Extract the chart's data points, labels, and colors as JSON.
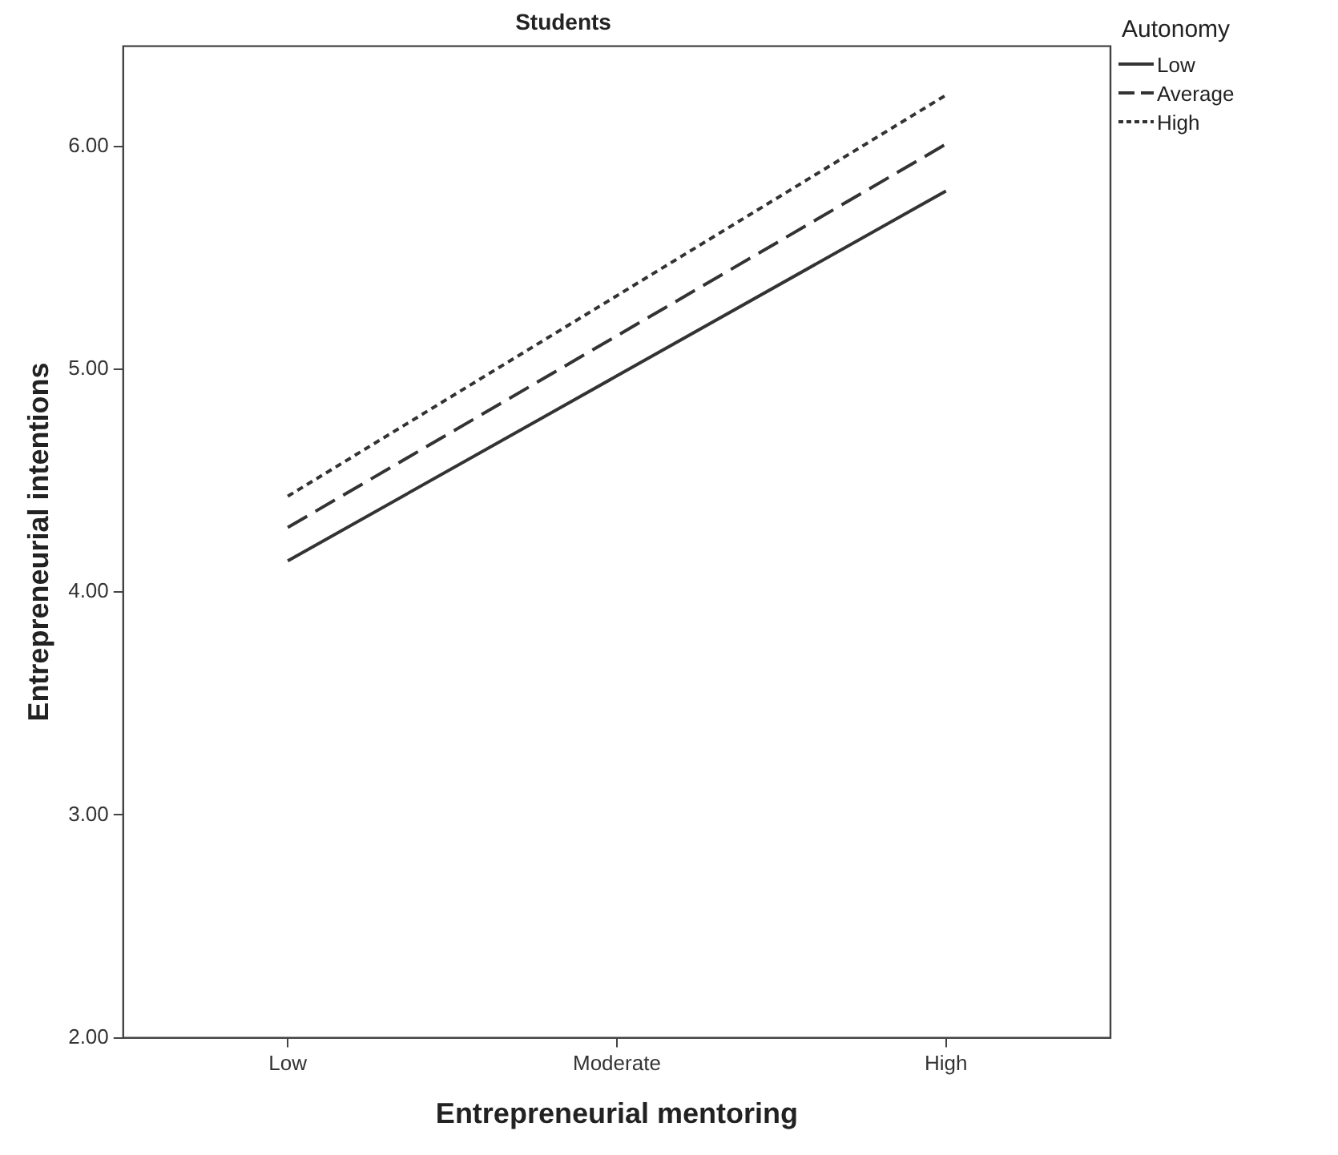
{
  "chart_data": {
    "type": "line",
    "title": "Students",
    "xlabel": "Entrepreneurial mentoring",
    "ylabel": "Entrepreneurial intentions",
    "legend_title": "Autonomy",
    "legend": "top right",
    "grid": false,
    "marker": "none",
    "categories": [
      "Low",
      "Moderate",
      "High"
    ],
    "ylim": [
      2,
      6.45
    ],
    "yticks": [
      {
        "value": 2,
        "label": "2.00"
      },
      {
        "value": 3,
        "label": "3.00"
      },
      {
        "value": 4,
        "label": "4.00"
      },
      {
        "value": 5,
        "label": "5.00"
      },
      {
        "value": 6,
        "label": "6.00"
      }
    ],
    "series": [
      {
        "name": "Low",
        "color": "#333333",
        "line_style": "solid",
        "values": [
          4.14,
          4.97,
          5.8
        ]
      },
      {
        "name": "Average",
        "color": "#333333",
        "line_style": "dashed",
        "values": [
          4.29,
          5.15,
          6.01
        ]
      },
      {
        "name": "High",
        "color": "#333333",
        "line_style": "dotted",
        "values": [
          4.43,
          5.33,
          6.23
        ]
      }
    ]
  }
}
